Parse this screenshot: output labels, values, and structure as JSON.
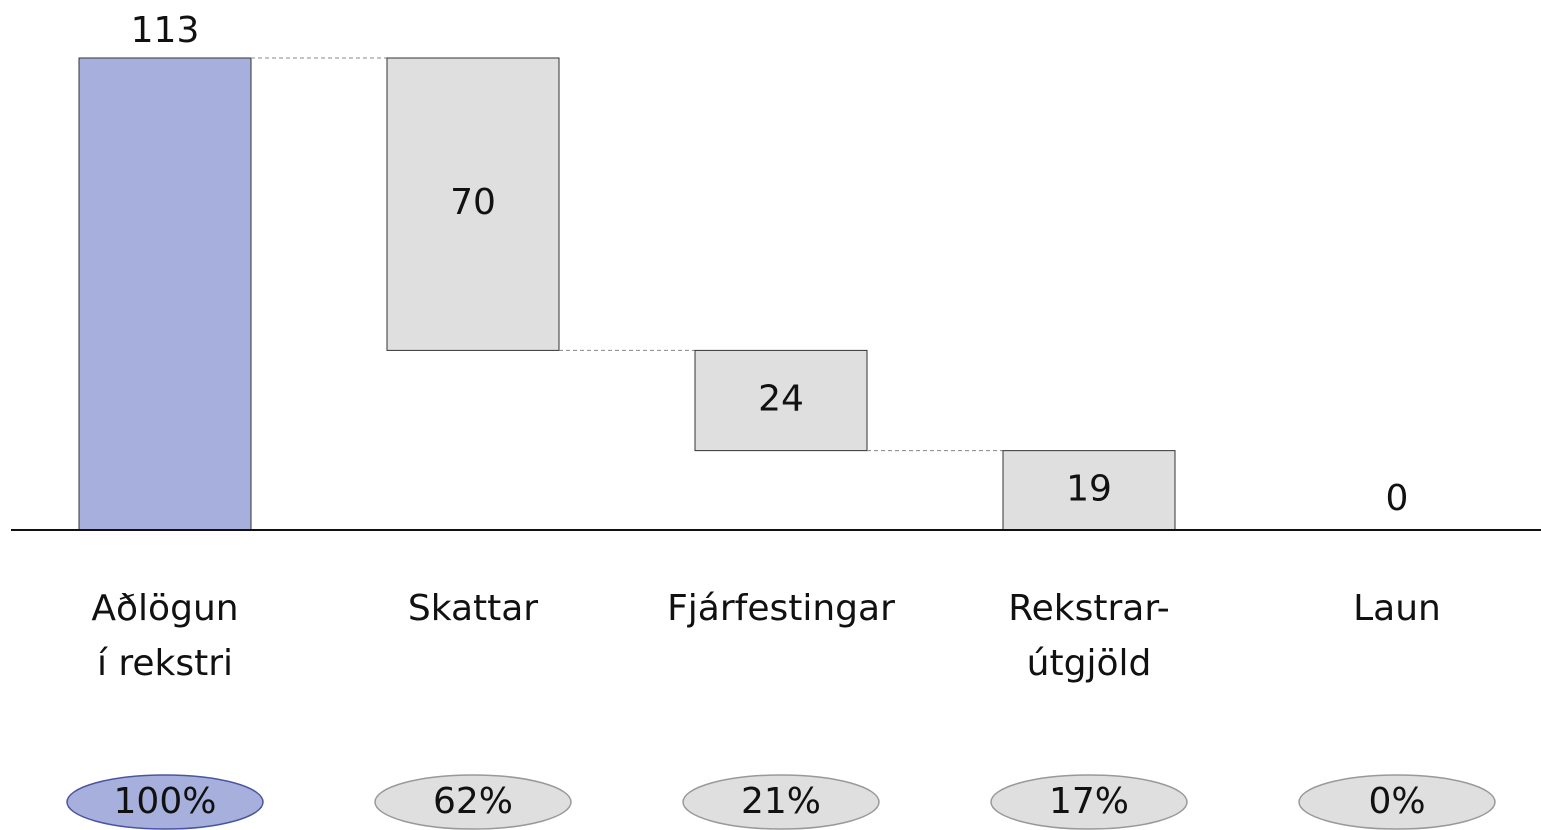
{
  "chart_data": {
    "type": "waterfall",
    "categories": [
      [
        "Aðlögun",
        "í rekstri"
      ],
      [
        "Skattar"
      ],
      [
        "Fjárfestingar"
      ],
      [
        "Rekstrar-",
        "útgjöld"
      ],
      [
        "Laun"
      ]
    ],
    "values": [
      113,
      70,
      24,
      19,
      0
    ],
    "measure": [
      "absolute",
      "relative",
      "relative",
      "relative",
      "relative"
    ],
    "shares": [
      100,
      62,
      21,
      17,
      0
    ],
    "share_labels": [
      "100%",
      "62%",
      "21%",
      "17%",
      "0%"
    ],
    "total_color": "#a7b0dd",
    "color": "#dfdfdf",
    "ylim": [
      0,
      113
    ]
  }
}
